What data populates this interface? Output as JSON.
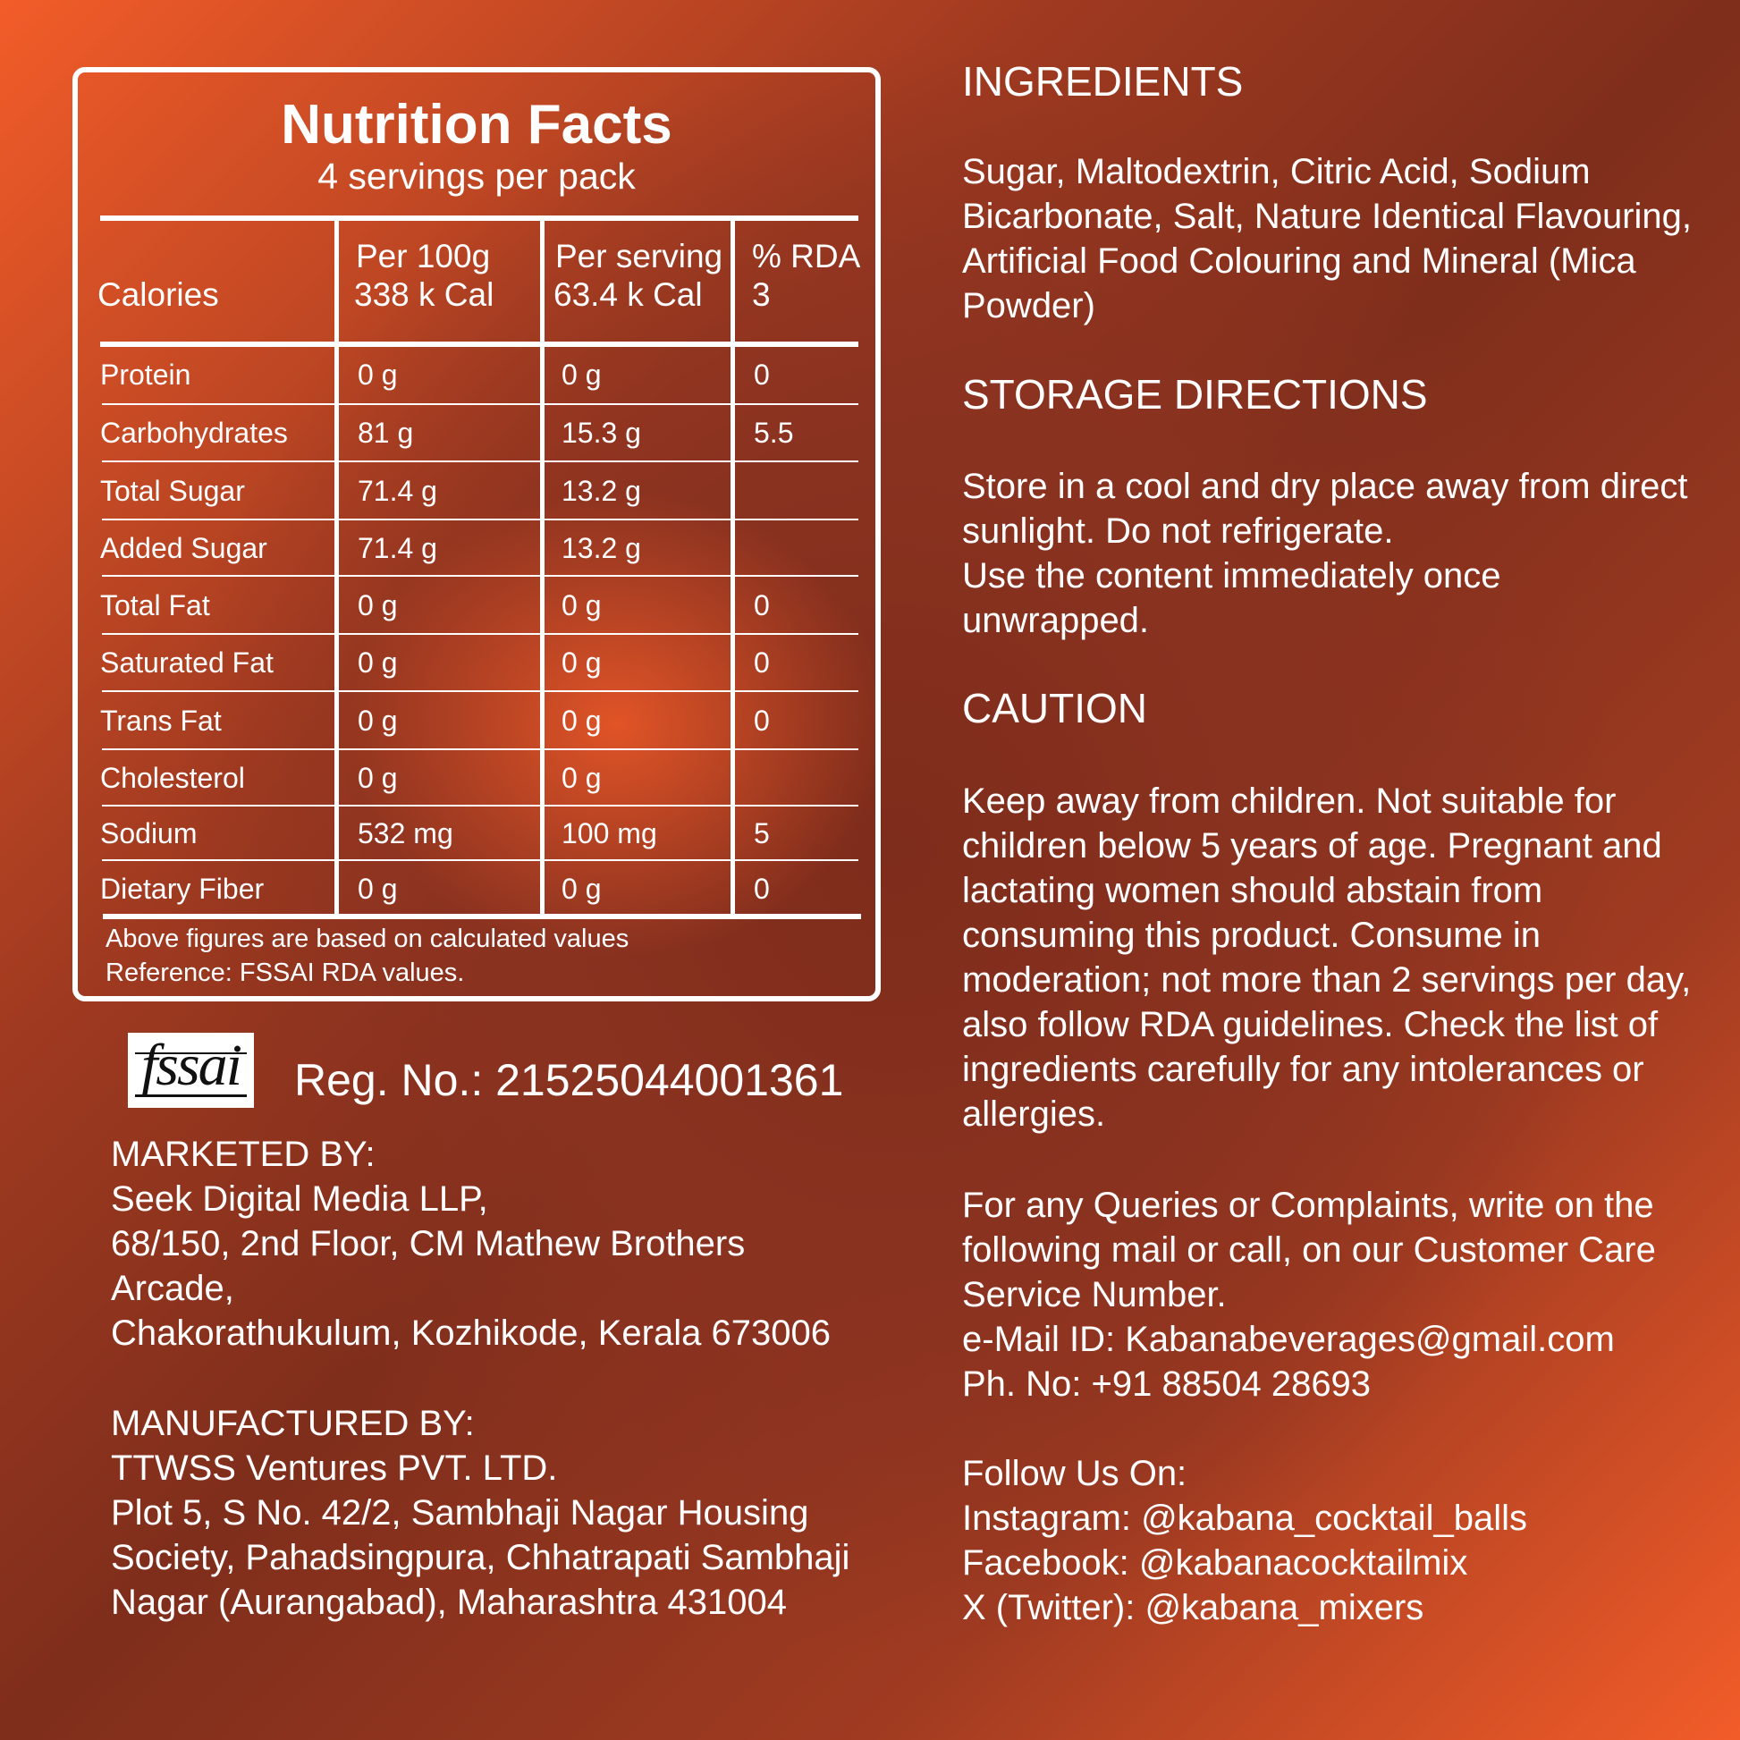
{
  "nutrition": {
    "title": "Nutrition Facts",
    "servings": "4 servings per pack",
    "header": {
      "label": "Calories",
      "col1_title": "Per 100g",
      "col1_value": "338 k Cal",
      "col2_title": "Per serving",
      "col2_value": "63.4 k Cal",
      "col3_title": "% RDA",
      "col3_value": "3"
    },
    "rows": [
      {
        "name": "Protein",
        "per100g": "0 g",
        "perServing": "0 g",
        "rda": "0"
      },
      {
        "name": "Carbohydrates",
        "per100g": "81 g",
        "perServing": "15.3 g",
        "rda": "5.5"
      },
      {
        "name": "Total Sugar",
        "per100g": "71.4 g",
        "perServing": "13.2 g",
        "rda": ""
      },
      {
        "name": "Added Sugar",
        "per100g": "71.4 g",
        "perServing": "13.2 g",
        "rda": ""
      },
      {
        "name": "Total Fat",
        "per100g": "0 g",
        "perServing": "0 g",
        "rda": "0"
      },
      {
        "name": "Saturated Fat",
        "per100g": "0 g",
        "perServing": "0 g",
        "rda": "0"
      },
      {
        "name": "Trans Fat",
        "per100g": "0 g",
        "perServing": "0 g",
        "rda": "0"
      },
      {
        "name": "Cholesterol",
        "per100g": "0 g",
        "perServing": "0 g",
        "rda": ""
      },
      {
        "name": "Sodium",
        "per100g": "532 mg",
        "perServing": "100 mg",
        "rda": "5"
      },
      {
        "name": "Dietary Fiber",
        "per100g": "0 g",
        "perServing": "0 g",
        "rda": "0"
      }
    ],
    "note1": "Above figures are based on calculated values",
    "note2": "Reference: FSSAI RDA values."
  },
  "fssai": {
    "logo_text": "fssai",
    "reg": "Reg. No.: 21525044001361"
  },
  "marketed": [
    "MARKETED BY:",
    "Seek Digital Media LLP,",
    "68/150, 2nd Floor, CM Mathew Brothers",
    "Arcade,",
    "Chakorathukulum, Kozhikode, Kerala 673006"
  ],
  "manufactured": [
    "MANUFACTURED BY:",
    "TTWSS Ventures PVT. LTD.",
    "Plot 5, S No. 42/2, Sambhaji Nagar Housing",
    "Society, Pahadsingpura, Chhatrapati Sambhaji",
    "Nagar (Aurangabad), Maharashtra 431004"
  ],
  "ingredients": {
    "heading": "INGREDIENTS",
    "lines": [
      "Sugar, Maltodextrin, Citric Acid, Sodium",
      "Bicarbonate, Salt, Nature Identical Flavouring,",
      "Artificial Food Colouring and Mineral (Mica",
      "Powder)"
    ]
  },
  "storage": {
    "heading": "STORAGE DIRECTIONS",
    "lines": [
      "Store in a cool and dry place away from direct",
      "sunlight. Do not refrigerate.",
      "Use the content immediately once",
      "unwrapped."
    ]
  },
  "caution": {
    "heading": "CAUTION",
    "lines": [
      "Keep away from children. Not suitable for",
      "children below 5 years of age. Pregnant and",
      "lactating women should abstain from",
      "consuming this product. Consume in",
      "moderation; not more than 2 servings per day,",
      "also follow RDA guidelines. Check the list of",
      "ingredients carefully for any intolerances or",
      "allergies."
    ]
  },
  "contact": [
    "For any Queries or Complaints, write on the",
    "following mail or call, on our Customer Care",
    "Service Number.",
    "e-Mail ID: Kabanabeverages@gmail.com",
    "Ph. No: +91 88504 28693"
  ],
  "social": [
    "Follow Us On:",
    "Instagram: @kabana_cocktail_balls",
    "Facebook: @kabanacocktailmix",
    "X (Twitter): @kabana_mixers"
  ]
}
